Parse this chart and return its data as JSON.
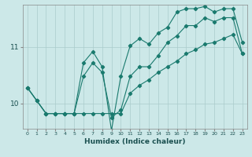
{
  "xlabel": "Humidex (Indice chaleur)",
  "bg_color": "#cce8e8",
  "line_color": "#1a7a6e",
  "grid_color": "#aacccc",
  "xlim": [
    -0.5,
    23.5
  ],
  "ylim": [
    9.55,
    11.75
  ],
  "yticks": [
    10,
    11
  ],
  "xticks": [
    0,
    1,
    2,
    3,
    4,
    5,
    6,
    7,
    8,
    9,
    10,
    11,
    12,
    13,
    14,
    15,
    16,
    17,
    18,
    19,
    20,
    21,
    22,
    23
  ],
  "line1_x": [
    0,
    1,
    2,
    3,
    4,
    5,
    6,
    7,
    8,
    9,
    10,
    11,
    12,
    13,
    14,
    15,
    16,
    17,
    18,
    19,
    20,
    21,
    22,
    23
  ],
  "line1_y": [
    10.28,
    10.05,
    9.82,
    9.82,
    9.82,
    9.82,
    10.48,
    10.72,
    10.55,
    9.75,
    9.88,
    10.48,
    10.65,
    10.65,
    10.85,
    11.08,
    11.2,
    11.38,
    11.38,
    11.52,
    11.45,
    11.52,
    11.52,
    10.88
  ],
  "line2_x": [
    0,
    1,
    2,
    3,
    4,
    5,
    6,
    7,
    8,
    9,
    10,
    11,
    12,
    13,
    14,
    15,
    16,
    17,
    18,
    19,
    20,
    21,
    22,
    23
  ],
  "line2_y": [
    10.28,
    10.05,
    9.82,
    9.82,
    9.82,
    9.82,
    10.72,
    10.92,
    10.65,
    9.52,
    10.48,
    11.02,
    11.15,
    11.05,
    11.25,
    11.35,
    11.62,
    11.68,
    11.68,
    11.72,
    11.62,
    11.68,
    11.68,
    11.08
  ],
  "line3_x": [
    0,
    1,
    2,
    3,
    4,
    5,
    6,
    7,
    8,
    9,
    10,
    11,
    12,
    13,
    14,
    15,
    16,
    17,
    18,
    19,
    20,
    21,
    22,
    23
  ],
  "line3_y": [
    10.28,
    10.05,
    9.82,
    9.82,
    9.82,
    9.82,
    9.82,
    9.82,
    9.82,
    9.82,
    9.82,
    10.18,
    10.32,
    10.42,
    10.55,
    10.65,
    10.75,
    10.88,
    10.95,
    11.05,
    11.08,
    11.15,
    11.22,
    10.88
  ]
}
